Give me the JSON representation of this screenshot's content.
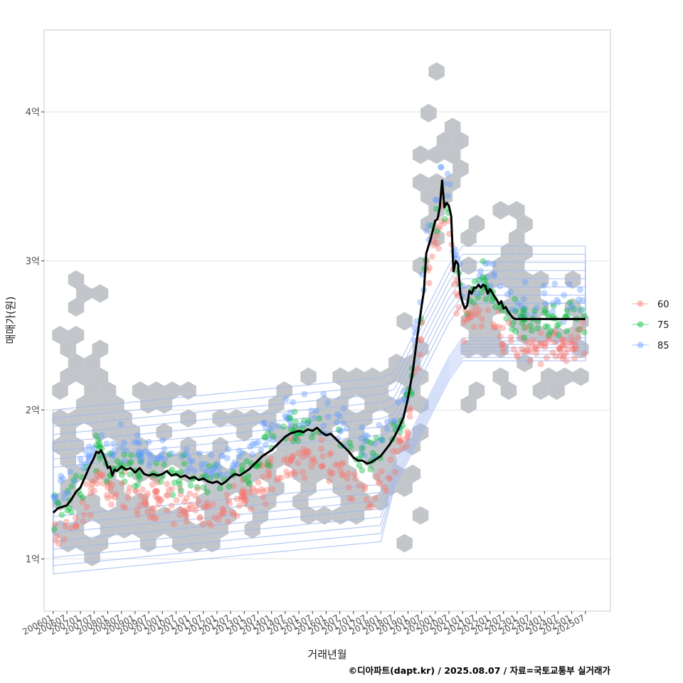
{
  "chart_data": {
    "type": "scatter",
    "xlabel": "거래년월",
    "ylabel": "매매가(원)",
    "caption": "©디아파트(dapt.kr) / 2025.08.07 / 자료=국토교통부 실거래가",
    "y_unit": "억",
    "ylim": [
      0.65,
      4.55
    ],
    "y_ticks": [
      {
        "value": 1,
        "label": "1억"
      },
      {
        "value": 2,
        "label": "2억"
      },
      {
        "value": 3,
        "label": "3억"
      },
      {
        "value": 4,
        "label": "4억"
      }
    ],
    "x_start": "2006-01",
    "x_end": "2025-07",
    "x_range_months": [
      -4,
      245
    ],
    "x_tick_labels": [
      "200601",
      "200607",
      "200701",
      "200707",
      "200801",
      "200807",
      "200901",
      "200907",
      "201001",
      "201007",
      "201101",
      "201107",
      "201201",
      "201207",
      "201301",
      "201307",
      "201401",
      "201407",
      "201501",
      "201507",
      "201601",
      "201607",
      "201701",
      "201707",
      "201801",
      "201807",
      "201901",
      "201907",
      "202001",
      "202007",
      "202101",
      "202107",
      "202201",
      "202207",
      "202301",
      "202307",
      "202401",
      "202407",
      "202501",
      "202507"
    ],
    "legend": [
      {
        "name": "60",
        "color": "#F8766D"
      },
      {
        "name": "75",
        "color": "#00BA38"
      },
      {
        "name": "85",
        "color": "#619CFF"
      }
    ],
    "hex_color": "#b7bcc1",
    "contour_color": "#9db5f2",
    "trend_line": {
      "name": "moving average",
      "color": "#000000",
      "points": [
        [
          0,
          1.31
        ],
        [
          2,
          1.34
        ],
        [
          4,
          1.35
        ],
        [
          6,
          1.36
        ],
        [
          8,
          1.4
        ],
        [
          10,
          1.45
        ],
        [
          12,
          1.48
        ],
        [
          14,
          1.55
        ],
        [
          16,
          1.62
        ],
        [
          18,
          1.68
        ],
        [
          19,
          1.72
        ],
        [
          20,
          1.71
        ],
        [
          21,
          1.73
        ],
        [
          22,
          1.7
        ],
        [
          23,
          1.66
        ],
        [
          24,
          1.61
        ],
        [
          25,
          1.62
        ],
        [
          26,
          1.56
        ],
        [
          27,
          1.6
        ],
        [
          28,
          1.59
        ],
        [
          30,
          1.62
        ],
        [
          32,
          1.6
        ],
        [
          34,
          1.61
        ],
        [
          36,
          1.58
        ],
        [
          38,
          1.61
        ],
        [
          40,
          1.57
        ],
        [
          42,
          1.56
        ],
        [
          44,
          1.57
        ],
        [
          46,
          1.56
        ],
        [
          48,
          1.57
        ],
        [
          50,
          1.59
        ],
        [
          52,
          1.56
        ],
        [
          54,
          1.57
        ],
        [
          56,
          1.55
        ],
        [
          58,
          1.56
        ],
        [
          60,
          1.54
        ],
        [
          62,
          1.55
        ],
        [
          64,
          1.53
        ],
        [
          66,
          1.54
        ],
        [
          68,
          1.52
        ],
        [
          70,
          1.51
        ],
        [
          72,
          1.52
        ],
        [
          74,
          1.5
        ],
        [
          76,
          1.52
        ],
        [
          78,
          1.55
        ],
        [
          80,
          1.57
        ],
        [
          82,
          1.56
        ],
        [
          84,
          1.58
        ],
        [
          86,
          1.6
        ],
        [
          88,
          1.63
        ],
        [
          90,
          1.66
        ],
        [
          92,
          1.69
        ],
        [
          94,
          1.71
        ],
        [
          96,
          1.73
        ],
        [
          98,
          1.76
        ],
        [
          100,
          1.79
        ],
        [
          102,
          1.82
        ],
        [
          104,
          1.84
        ],
        [
          106,
          1.85
        ],
        [
          108,
          1.86
        ],
        [
          110,
          1.85
        ],
        [
          112,
          1.87
        ],
        [
          114,
          1.86
        ],
        [
          116,
          1.88
        ],
        [
          118,
          1.85
        ],
        [
          120,
          1.83
        ],
        [
          122,
          1.84
        ],
        [
          124,
          1.81
        ],
        [
          126,
          1.78
        ],
        [
          128,
          1.75
        ],
        [
          130,
          1.72
        ],
        [
          132,
          1.68
        ],
        [
          134,
          1.66
        ],
        [
          136,
          1.66
        ],
        [
          138,
          1.64
        ],
        [
          140,
          1.65
        ],
        [
          142,
          1.67
        ],
        [
          144,
          1.69
        ],
        [
          146,
          1.73
        ],
        [
          148,
          1.77
        ],
        [
          150,
          1.82
        ],
        [
          152,
          1.88
        ],
        [
          154,
          1.95
        ],
        [
          156,
          2.08
        ],
        [
          158,
          2.25
        ],
        [
          160,
          2.48
        ],
        [
          162,
          2.7
        ],
        [
          163,
          2.8
        ],
        [
          164,
          3.05
        ],
        [
          166,
          3.15
        ],
        [
          168,
          3.27
        ],
        [
          169,
          3.28
        ],
        [
          170,
          3.36
        ],
        [
          171,
          3.54
        ],
        [
          172,
          3.36
        ],
        [
          173,
          3.39
        ],
        [
          174,
          3.37
        ],
        [
          175,
          3.3
        ],
        [
          176,
          2.93
        ],
        [
          177,
          3.0
        ],
        [
          178,
          2.98
        ],
        [
          179,
          2.78
        ],
        [
          180,
          2.72
        ],
        [
          181,
          2.68
        ],
        [
          182,
          2.7
        ],
        [
          183,
          2.8
        ],
        [
          184,
          2.78
        ],
        [
          185,
          2.82
        ],
        [
          186,
          2.82
        ],
        [
          187,
          2.84
        ],
        [
          188,
          2.82
        ],
        [
          189,
          2.84
        ],
        [
          190,
          2.83
        ],
        [
          191,
          2.78
        ],
        [
          192,
          2.81
        ],
        [
          193,
          2.79
        ],
        [
          194,
          2.76
        ],
        [
          195,
          2.74
        ],
        [
          196,
          2.71
        ],
        [
          197,
          2.73
        ],
        [
          198,
          2.68
        ],
        [
          199,
          2.69
        ],
        [
          200,
          2.66
        ],
        [
          201,
          2.64
        ],
        [
          202,
          2.62
        ],
        [
          203,
          2.61
        ],
        [
          234,
          2.61
        ]
      ]
    }
  }
}
